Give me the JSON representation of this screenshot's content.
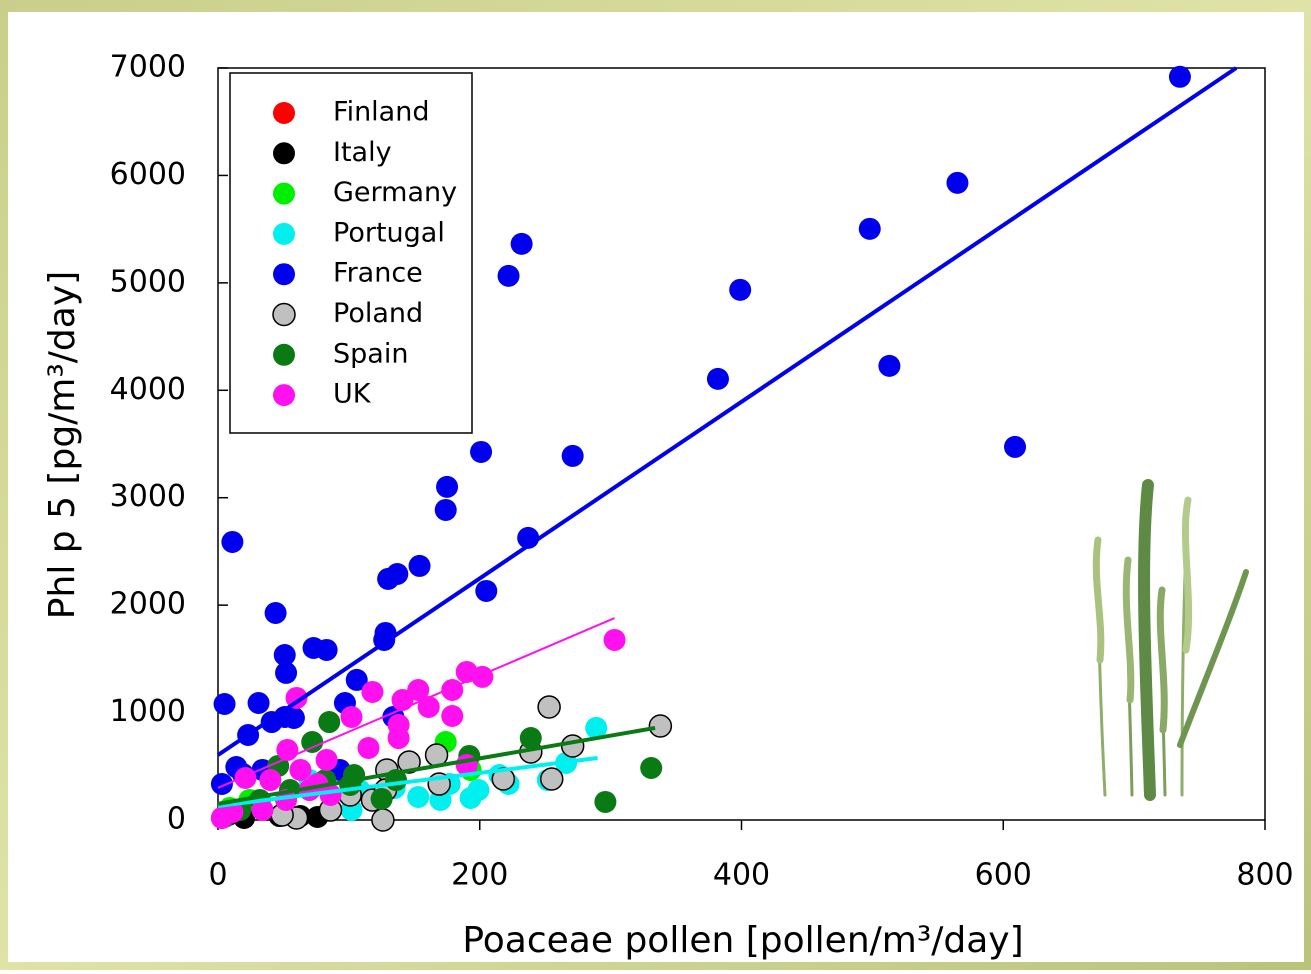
{
  "chart_data": {
    "type": "scatter",
    "x_label": "Poaceae pollen [pollen/m³/day]",
    "y_label": "Phl p 5 [pg/m³/day]",
    "xlim": [
      0,
      800
    ],
    "xticks": [
      0,
      200,
      400,
      600,
      800
    ],
    "ylim": [
      0,
      7000
    ],
    "yticks": [
      0,
      1000,
      2000,
      3000,
      4000,
      5000,
      6000,
      7000
    ],
    "legend": "upper left",
    "series": [
      {
        "name": "Finland",
        "color": "#ff0000",
        "x": [
          3,
          9
        ],
        "values": [
          19,
          56
        ]
      },
      {
        "name": "Italy",
        "color": "#000000",
        "x": [
          76,
          8,
          20,
          47,
          63
        ],
        "values": [
          28,
          47,
          19,
          37,
          37
        ]
      },
      {
        "name": "Germany",
        "color": "#00ee00",
        "x": [
          174,
          193,
          9,
          24
        ],
        "values": [
          726,
          466,
          112,
          186
        ]
      },
      {
        "name": "Portugal",
        "color": "#00f0f0",
        "x": [
          289,
          266,
          252,
          222,
          199,
          193,
          177,
          153,
          135,
          108,
          70,
          170,
          102,
          215
        ],
        "values": [
          857,
          531,
          372,
          335,
          279,
          205,
          335,
          214,
          298,
          279,
          372,
          186,
          93,
          419
        ],
        "fit": {
          "x": [
            0,
            290
          ],
          "y": [
            130,
            577
          ]
        }
      },
      {
        "name": "France",
        "color": "#0000ee",
        "x": [
          735,
          565,
          498,
          399,
          513,
          382,
          609,
          232,
          222,
          201,
          271,
          175,
          174,
          237,
          154,
          137,
          130,
          205,
          11,
          44,
          128,
          127,
          83,
          73,
          51,
          52,
          106,
          97,
          31,
          5,
          41,
          51,
          58,
          23,
          134,
          14,
          3,
          19,
          34,
          93
        ],
        "values": [
          6918,
          5931,
          5503,
          4935,
          4227,
          4106,
          3473,
          5363,
          5065,
          3426,
          3389,
          3101,
          2886,
          2626,
          2365,
          2290,
          2244,
          2132,
          2588,
          1927,
          1741,
          1676,
          1583,
          1601,
          1536,
          1369,
          1304,
          1089,
          1089,
          1080,
          912,
          959,
          950,
          791,
          959,
          493,
          335,
          428,
          466,
          466
        ],
        "fit": {
          "x": [
            0,
            778
          ],
          "y": [
            605,
            7000
          ]
        }
      },
      {
        "name": "Poland",
        "color": "#c0c0c0",
        "x": [
          253,
          338,
          271,
          239,
          167,
          146,
          129,
          255,
          218,
          169,
          126,
          118,
          86,
          60,
          49,
          101,
          128
        ],
        "values": [
          1052,
          875,
          689,
          633,
          605,
          540,
          466,
          382,
          382,
          335,
          0,
          186,
          93,
          19,
          47,
          233,
          279
        ]
      },
      {
        "name": "Spain",
        "color": "#0a7a14",
        "x": [
          85,
          72,
          239,
          192,
          331,
          296,
          136,
          125,
          101,
          82,
          46,
          55,
          32,
          17,
          5,
          104
        ],
        "values": [
          912,
          726,
          763,
          596,
          484,
          168,
          372,
          196,
          326,
          372,
          503,
          279,
          186,
          93,
          28,
          419
        ],
        "fit": {
          "x": [
            0,
            334
          ],
          "y": [
            150,
            857
          ]
        }
      },
      {
        "name": "UK",
        "color": "#ff10ee",
        "x": [
          303,
          202,
          190,
          179,
          153,
          141,
          161,
          179,
          118,
          60,
          102,
          138,
          115,
          138,
          190,
          83,
          53,
          63,
          70,
          40,
          21,
          52,
          34,
          11,
          3,
          86,
          76
        ],
        "values": [
          1676,
          1332,
          1378,
          1210,
          1210,
          1117,
          1052,
          968,
          1192,
          1136,
          959,
          885,
          670,
          763,
          512,
          559,
          652,
          466,
          279,
          372,
          391,
          186,
          93,
          74,
          19,
          233,
          335
        ],
        "fit": {
          "x": [
            0,
            303
          ],
          "y": [
            300,
            1880
          ]
        }
      }
    ]
  }
}
